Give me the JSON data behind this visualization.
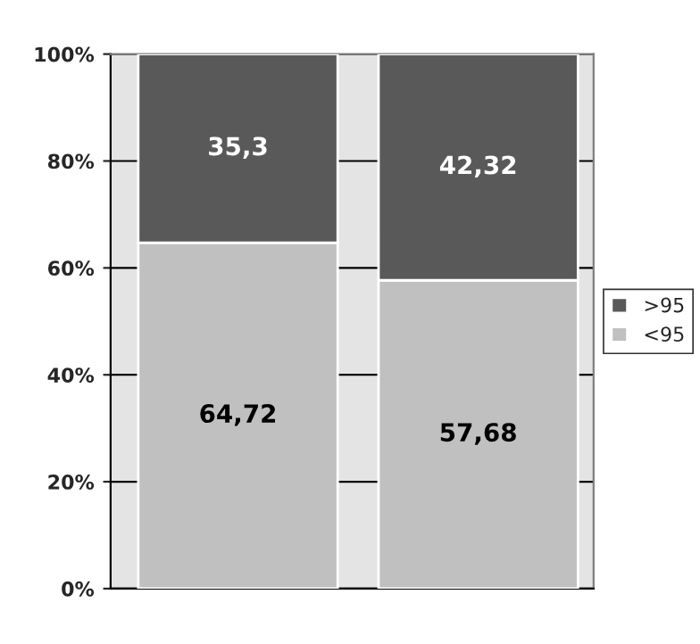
{
  "chart_data": {
    "type": "bar",
    "stacked": true,
    "categories": [
      null,
      null
    ],
    "series": [
      {
        "name": "<95",
        "color": "#c0c0c0",
        "values": [
          64.72,
          57.68
        ],
        "value_labels": [
          "64,72",
          "57,68"
        ]
      },
      {
        "name": ">95",
        "color": "#595959",
        "values": [
          35.3,
          42.32
        ],
        "value_labels": [
          "35,3",
          "42,32"
        ]
      }
    ],
    "ylim": [
      0,
      100
    ],
    "yticks": [
      {
        "value": 0,
        "label": "0%"
      },
      {
        "value": 20,
        "label": "20%"
      },
      {
        "value": 40,
        "label": "40%"
      },
      {
        "value": 60,
        "label": "60%"
      },
      {
        "value": 80,
        "label": "80%"
      },
      {
        "value": 100,
        "label": "100%"
      }
    ],
    "grid": "y",
    "legend": "right"
  }
}
